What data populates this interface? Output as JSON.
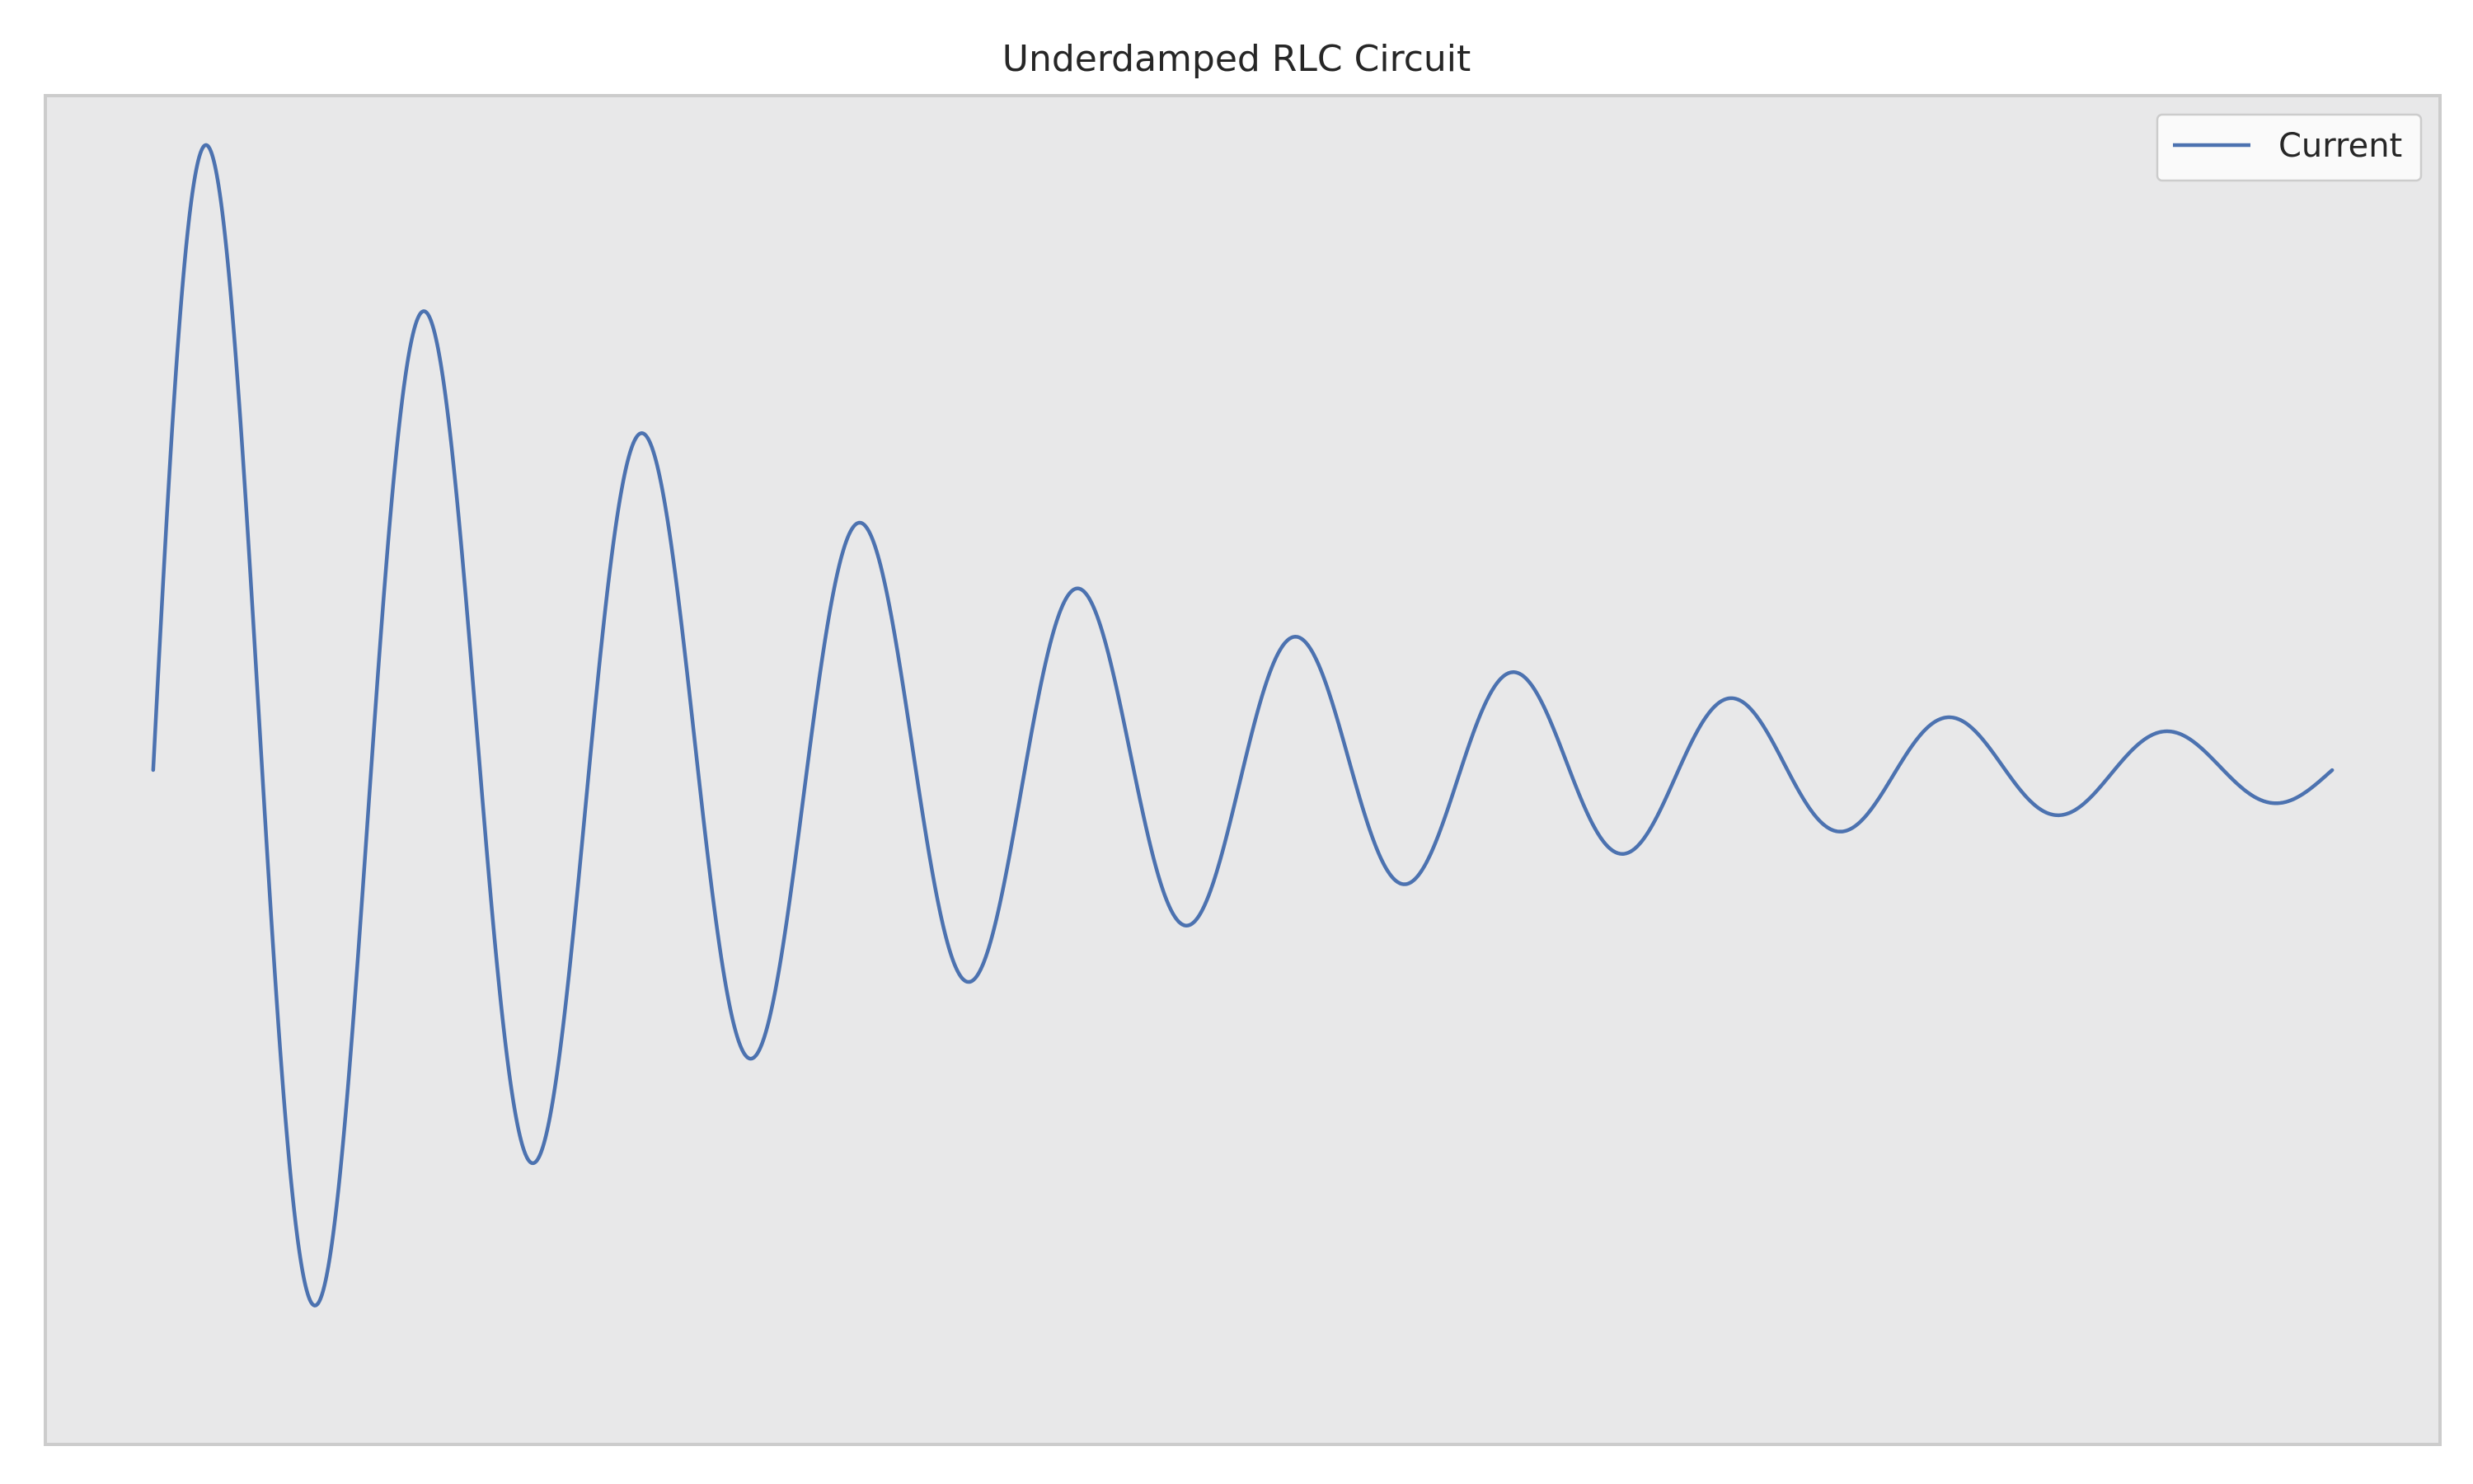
{
  "chart_data": {
    "type": "line",
    "title": "Underdamped RLC Circuit",
    "xlabel": "",
    "ylabel": "",
    "xlim": [
      -0.0495,
      1.0495
    ],
    "ylim": [
      -1.0,
      1.0
    ],
    "grid": false,
    "axes_visible": false,
    "legend": {
      "position": "top-right",
      "entries": [
        "Current"
      ]
    },
    "series": [
      {
        "name": "Current",
        "color": "#4c72b0",
        "model": "damped-sine",
        "envelope_decay_rate": 3.09,
        "angular_frequency": 62.83,
        "initial_amplitude": 1.0,
        "x_start": 0.0,
        "x_end": 1.0,
        "points": [
          [
            0.0,
            0.0
          ],
          [
            0.023,
            0.93
          ],
          [
            0.075,
            -0.85
          ],
          [
            0.122,
            0.64
          ],
          [
            0.174,
            -0.55
          ],
          [
            0.221,
            0.38
          ],
          [
            0.273,
            -0.31
          ],
          [
            0.322,
            0.24
          ],
          [
            0.372,
            -0.19
          ],
          [
            0.421,
            0.14
          ],
          [
            0.471,
            -0.11
          ],
          [
            0.521,
            0.08
          ],
          [
            0.57,
            -0.07
          ],
          [
            0.62,
            0.06
          ],
          [
            0.67,
            -0.04
          ],
          [
            0.72,
            0.04
          ],
          [
            0.77,
            -0.03
          ],
          [
            0.82,
            0.02
          ],
          [
            0.87,
            -0.02
          ],
          [
            0.92,
            0.02
          ],
          [
            0.97,
            -0.01
          ],
          [
            1.0,
            0.0
          ]
        ]
      }
    ]
  }
}
